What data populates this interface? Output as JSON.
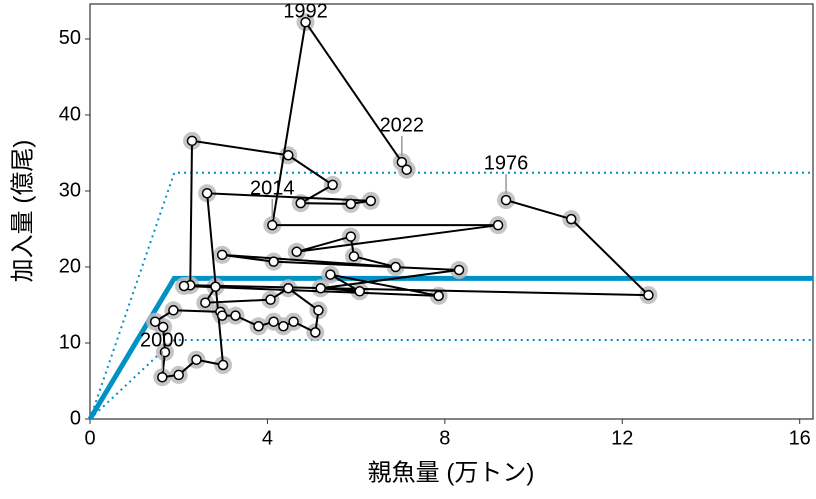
{
  "chart_data": {
    "type": "scatter-path",
    "x_label": "親魚量 (万トン)",
    "y_label": "加入量 (億尾)",
    "xlim": [
      0,
      16.3
    ],
    "ylim": [
      0,
      54.6
    ],
    "xticks": [
      0,
      4,
      8,
      12,
      16
    ],
    "yticks": [
      0,
      10,
      20,
      30,
      40,
      50
    ],
    "series": [
      {
        "color": "#000000",
        "x": [
          9.38,
          10.85,
          12.59,
          2.26,
          2.3,
          4.47,
          5.47,
          4.75,
          5.88,
          6.33,
          2.64,
          3.0,
          2.4,
          2.0,
          1.63,
          1.69,
          1.65,
          1.47,
          1.88,
          2.94,
          2.98,
          3.28,
          3.8,
          4.14,
          4.36,
          4.59,
          5.08,
          5.15,
          4.47,
          4.07,
          2.6,
          2.83,
          2.12,
          7.86,
          5.42,
          6.08,
          5.2,
          8.32,
          4.14,
          2.98,
          6.89,
          5.95,
          5.88,
          4.66,
          9.2,
          4.11,
          4.86,
          7.03,
          7.14
        ],
        "values": [
          28.8,
          26.3,
          16.3,
          17.6,
          36.6,
          34.7,
          30.8,
          28.4,
          28.3,
          28.7,
          29.7,
          7.1,
          7.8,
          5.8,
          5.5,
          8.8,
          12.1,
          12.8,
          14.3,
          14.1,
          13.6,
          13.6,
          12.2,
          12.8,
          12.2,
          12.8,
          11.4,
          14.3,
          17.2,
          15.7,
          15.3,
          17.4,
          17.5,
          16.2,
          19.0,
          16.8,
          17.2,
          19.6,
          20.7,
          21.6,
          20.0,
          21.4,
          24.0,
          22.0,
          25.5,
          25.5,
          52.2,
          33.8,
          32.8
        ]
      }
    ],
    "reference_lines": [
      {
        "color": "#0092c7",
        "style": "solid",
        "x": [
          0,
          1.9,
          16.3
        ],
        "values": [
          0,
          18.5,
          18.5
        ]
      },
      {
        "color": "#0092c7",
        "style": "dotted",
        "x": [
          0,
          1.9,
          16.3
        ],
        "values": [
          0,
          32.4,
          32.4
        ]
      },
      {
        "color": "#0092c7",
        "style": "dotted",
        "x": [
          0,
          1.9,
          16.3
        ],
        "values": [
          0,
          10.4,
          10.4
        ]
      }
    ],
    "annotations": [
      {
        "text": "1976",
        "x": 9.38,
        "y": 28.8
      },
      {
        "text": "1992",
        "x": 4.86,
        "y": 52.2
      },
      {
        "text": "2000",
        "x": 1.63,
        "y": 5.5
      },
      {
        "text": "2014",
        "x": 4.11,
        "y": 25.5
      },
      {
        "text": "2022",
        "x": 7.03,
        "y": 33.8
      }
    ]
  }
}
